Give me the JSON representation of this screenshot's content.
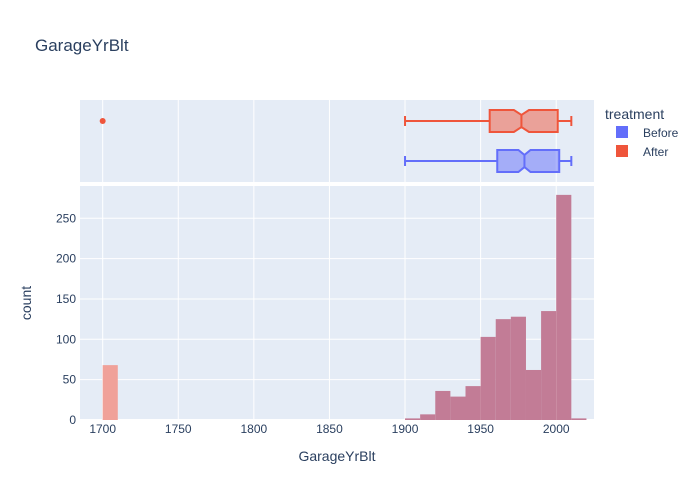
{
  "chart_data": {
    "type": "histogram_with_marginal_box",
    "title": "GarageYrBlt",
    "xlabel": "GarageYrBlt",
    "ylabel": "count",
    "xlim": [
      1685,
      2025
    ],
    "ylim": [
      0,
      290
    ],
    "x_ticks": [
      1700,
      1750,
      1800,
      1850,
      1900,
      1950,
      2000
    ],
    "y_ticks": [
      0,
      50,
      100,
      150,
      200,
      250
    ],
    "bin_width": 10,
    "legend": {
      "title": "treatment",
      "placement": "top-right",
      "items": [
        {
          "label": "Before",
          "color": "#636efa"
        },
        {
          "label": "After",
          "color": "#ef553b"
        }
      ]
    },
    "histogram": {
      "bins_start": [
        1700,
        1900,
        1910,
        1920,
        1930,
        1940,
        1950,
        1960,
        1970,
        1980,
        1990,
        2000,
        2010
      ],
      "counts": [
        68,
        2,
        7,
        36,
        29,
        42,
        103,
        125,
        128,
        62,
        135,
        279,
        2
      ],
      "overlap_color": "#c27c96",
      "after_only_color": "#f0a199",
      "after_only_bins": [
        1700
      ]
    },
    "box": [
      {
        "name": "After",
        "color": "#ef553b",
        "lowerfence": 1900,
        "q1": 1956,
        "median": 1977,
        "q3": 2001,
        "upperfence": 2010,
        "notch_low": 1972,
        "notch_high": 1982,
        "outliers": [
          1700
        ]
      },
      {
        "name": "Before",
        "color": "#636efa",
        "lowerfence": 1900,
        "q1": 1961,
        "median": 1979,
        "q3": 2002,
        "upperfence": 2010,
        "notch_low": 1975,
        "notch_high": 1983,
        "outliers": []
      }
    ]
  }
}
